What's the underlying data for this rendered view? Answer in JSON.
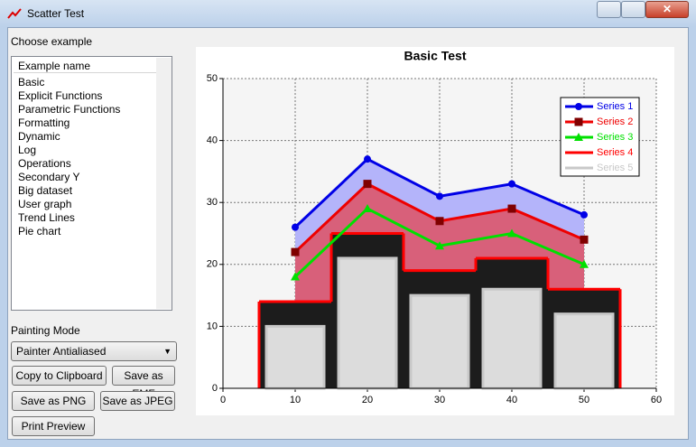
{
  "window": {
    "title": "Scatter Test"
  },
  "panel": {
    "choose_label": "Choose example",
    "list_header": "Example name",
    "examples": [
      "Basic",
      "Explicit Functions",
      "Parametric Functions",
      "Formatting",
      "Dynamic",
      "Log",
      "Operations",
      "Secondary Y",
      "Big dataset",
      "User graph",
      "Trend Lines",
      "Pie chart"
    ],
    "painting_label": "Painting Mode",
    "painting_mode": "Painter Antialiased",
    "buttons": [
      "Copy to Clipboard",
      "Save as EMF",
      "Save as PNG",
      "Save as JPEG",
      "Print Preview"
    ]
  },
  "chart_data": {
    "type": "scatter",
    "title": "Basic Test",
    "xlim": [
      0,
      60
    ],
    "xticks": [
      0,
      10,
      20,
      30,
      40,
      50,
      60
    ],
    "ylim": [
      0,
      50
    ],
    "yticks": [
      0,
      10,
      20,
      30,
      40,
      50
    ],
    "grid": true,
    "legend": "upper right",
    "series": [
      {
        "name": "Series 1",
        "style": "line",
        "marker": "circle",
        "color": "#0000e6",
        "fill": "#b4b4fa",
        "x": [
          10,
          20,
          30,
          40,
          50
        ],
        "values": [
          26,
          37,
          31,
          33,
          28
        ]
      },
      {
        "name": "Series 2",
        "style": "line",
        "marker": "square",
        "color": "#ee0000",
        "marker_color": "#800000",
        "fill": "#d8607a",
        "x": [
          10,
          20,
          30,
          40,
          50
        ],
        "values": [
          22,
          33,
          27,
          29,
          24
        ]
      },
      {
        "name": "Series 3",
        "style": "line",
        "marker": "triangle",
        "color": "#00e000",
        "x": [
          10,
          20,
          30,
          40,
          50
        ],
        "values": [
          18,
          29,
          23,
          25,
          20
        ]
      },
      {
        "name": "Series 4",
        "style": "step",
        "color": "#ff0000",
        "fill": "#1c1c1c",
        "x": [
          10,
          20,
          30,
          40,
          50
        ],
        "values": [
          14,
          25,
          19,
          21,
          16
        ]
      },
      {
        "name": "Series 5",
        "style": "bar",
        "color": "#c8c8c8",
        "fill": "#dcdcdc",
        "x": [
          10,
          20,
          30,
          40,
          50
        ],
        "values": [
          10,
          21,
          15,
          16,
          12
        ]
      }
    ]
  }
}
